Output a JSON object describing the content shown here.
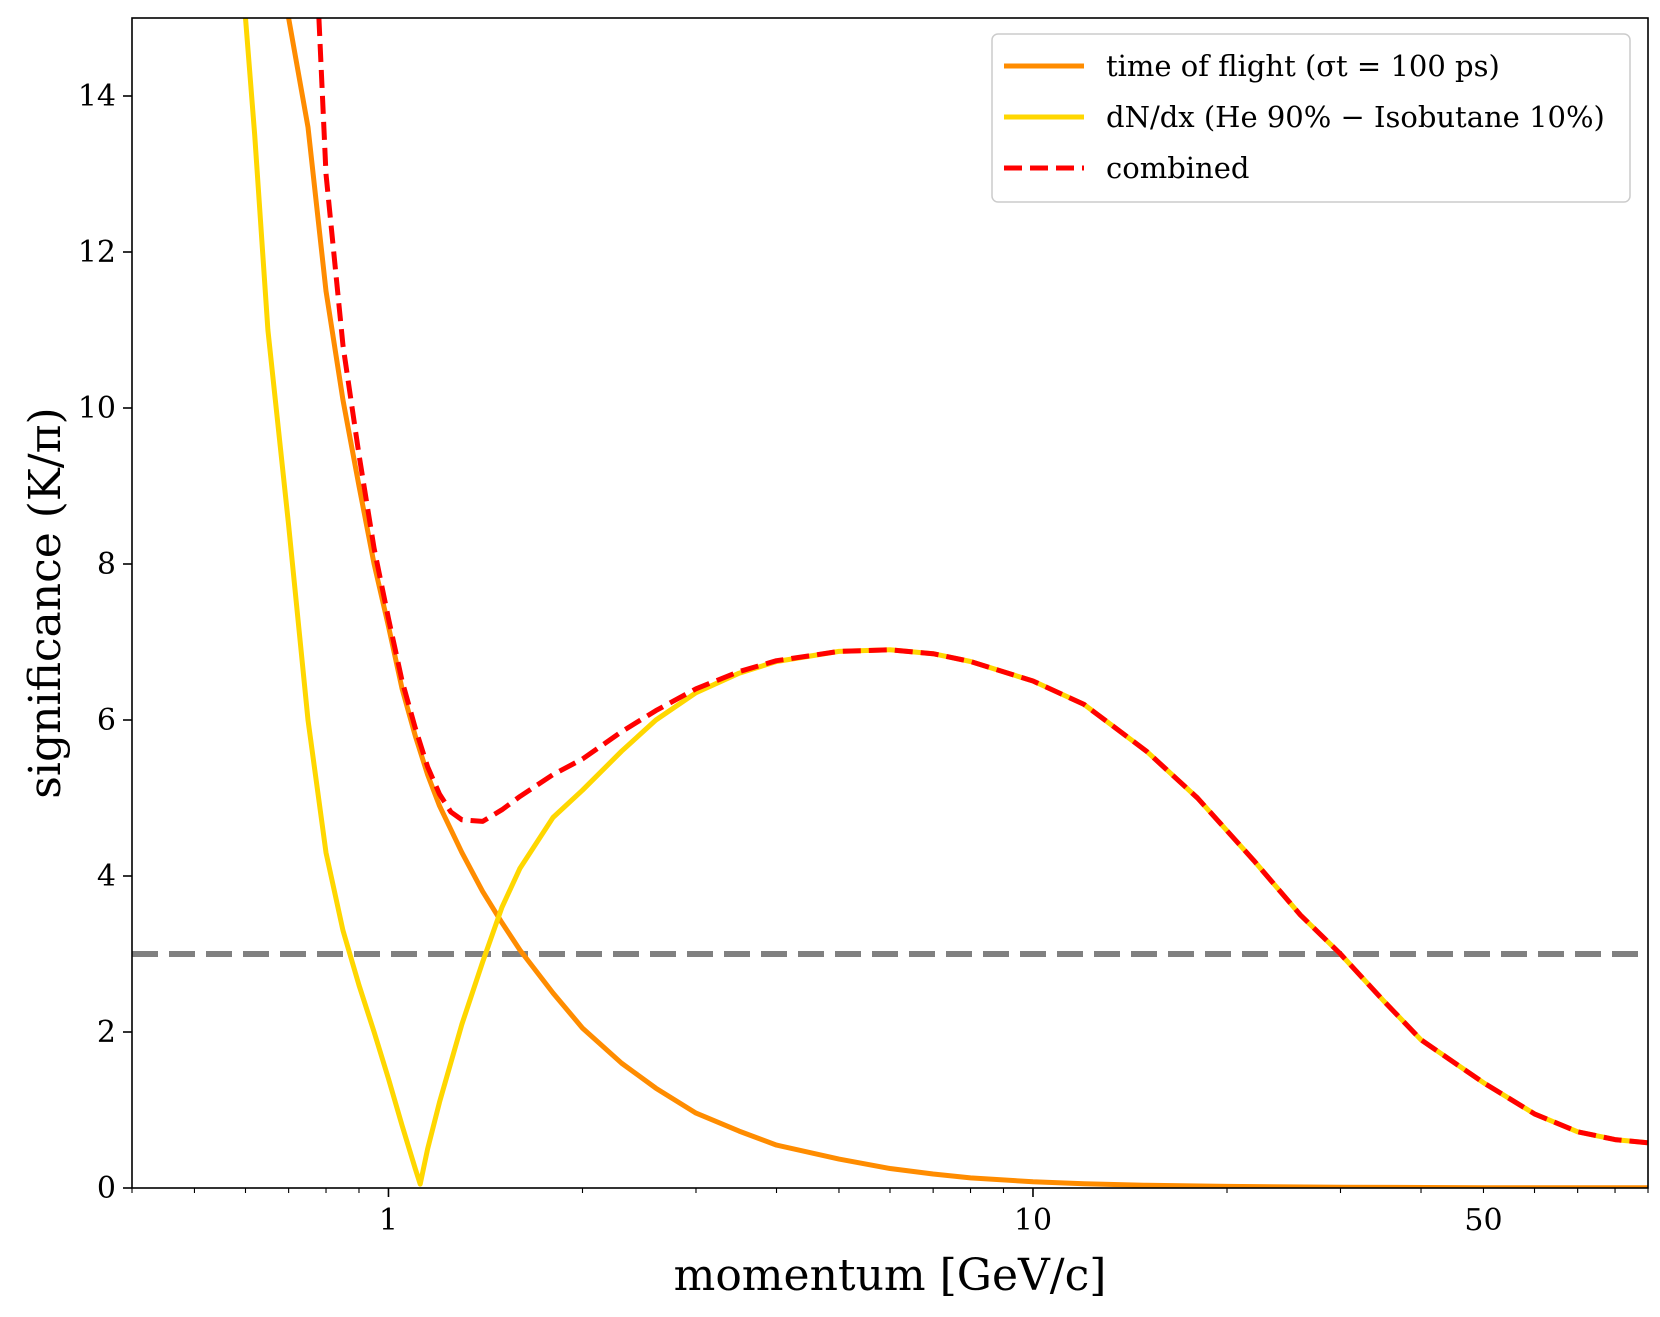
{
  "chart_data": {
    "type": "line",
    "xscale": "log",
    "xlim": [
      0.4,
      90
    ],
    "ylim": [
      0,
      15
    ],
    "xlabel": "momentum [GeV/c]",
    "ylabel": "significance (K/π)",
    "x_tick_labels": [
      {
        "value": 1,
        "label": "1"
      },
      {
        "value": 10,
        "label": "10"
      },
      {
        "value": 50,
        "label": "50"
      }
    ],
    "y_tick_labels": [
      {
        "value": 0,
        "label": "0"
      },
      {
        "value": 2,
        "label": "2"
      },
      {
        "value": 4,
        "label": "4"
      },
      {
        "value": 6,
        "label": "6"
      },
      {
        "value": 8,
        "label": "8"
      },
      {
        "value": 10,
        "label": "10"
      },
      {
        "value": 12,
        "label": "12"
      },
      {
        "value": 14,
        "label": "14"
      }
    ],
    "legend_position": "top-right",
    "reference_line": {
      "y": 3,
      "color": "#808080",
      "style": "dashed"
    },
    "series": [
      {
        "name": "time of flight (σt = 100 ps)",
        "color": "#ff8c00",
        "style": "solid",
        "points": [
          [
            0.7,
            15.0
          ],
          [
            0.75,
            13.6
          ],
          [
            0.8,
            11.5
          ],
          [
            0.85,
            10.1
          ],
          [
            0.9,
            9.0
          ],
          [
            0.95,
            8.0
          ],
          [
            1.0,
            7.2
          ],
          [
            1.05,
            6.4
          ],
          [
            1.1,
            5.8
          ],
          [
            1.15,
            5.3
          ],
          [
            1.2,
            4.9
          ],
          [
            1.3,
            4.3
          ],
          [
            1.4,
            3.8
          ],
          [
            1.5,
            3.4
          ],
          [
            1.6,
            3.05
          ],
          [
            1.8,
            2.5
          ],
          [
            2.0,
            2.05
          ],
          [
            2.3,
            1.6
          ],
          [
            2.6,
            1.28
          ],
          [
            3.0,
            0.96
          ],
          [
            3.5,
            0.73
          ],
          [
            4.0,
            0.55
          ],
          [
            5.0,
            0.37
          ],
          [
            6.0,
            0.25
          ],
          [
            7.0,
            0.18
          ],
          [
            8.0,
            0.13
          ],
          [
            10.0,
            0.08
          ],
          [
            12.0,
            0.055
          ],
          [
            15.0,
            0.035
          ],
          [
            20.0,
            0.02
          ],
          [
            30.0,
            0.01
          ],
          [
            50.0,
            0.004
          ],
          [
            90.0,
            0.002
          ]
        ]
      },
      {
        "name": "dN/dx (He 90% − Isobutane 10%)",
        "color": "#ffd700",
        "style": "solid",
        "points": [
          [
            0.6,
            15.0
          ],
          [
            0.62,
            13.5
          ],
          [
            0.65,
            11.0
          ],
          [
            0.7,
            8.5
          ],
          [
            0.75,
            6.0
          ],
          [
            0.8,
            4.3
          ],
          [
            0.85,
            3.3
          ],
          [
            0.9,
            2.6
          ],
          [
            0.95,
            2.0
          ],
          [
            1.0,
            1.4
          ],
          [
            1.05,
            0.8
          ],
          [
            1.1,
            0.25
          ],
          [
            1.12,
            0.05
          ],
          [
            1.15,
            0.5
          ],
          [
            1.2,
            1.1
          ],
          [
            1.3,
            2.1
          ],
          [
            1.4,
            2.9
          ],
          [
            1.5,
            3.6
          ],
          [
            1.6,
            4.1
          ],
          [
            1.8,
            4.75
          ],
          [
            2.0,
            5.1
          ],
          [
            2.3,
            5.6
          ],
          [
            2.6,
            6.0
          ],
          [
            3.0,
            6.35
          ],
          [
            3.5,
            6.6
          ],
          [
            4.0,
            6.75
          ],
          [
            5.0,
            6.88
          ],
          [
            6.0,
            6.9
          ],
          [
            7.0,
            6.85
          ],
          [
            8.0,
            6.75
          ],
          [
            10.0,
            6.5
          ],
          [
            12.0,
            6.2
          ],
          [
            15.0,
            5.6
          ],
          [
            18.0,
            5.0
          ],
          [
            22.0,
            4.2
          ],
          [
            26.0,
            3.5
          ],
          [
            30.0,
            3.0
          ],
          [
            35.0,
            2.4
          ],
          [
            40.0,
            1.9
          ],
          [
            50.0,
            1.35
          ],
          [
            60.0,
            0.95
          ],
          [
            70.0,
            0.72
          ],
          [
            80.0,
            0.62
          ],
          [
            90.0,
            0.58
          ]
        ]
      },
      {
        "name": "combined",
        "color": "#ff0000",
        "style": "dashed",
        "points": [
          [
            0.78,
            15.0
          ],
          [
            0.8,
            13.0
          ],
          [
            0.85,
            10.8
          ],
          [
            0.9,
            9.4
          ],
          [
            0.95,
            8.2
          ],
          [
            1.0,
            7.3
          ],
          [
            1.05,
            6.5
          ],
          [
            1.1,
            5.9
          ],
          [
            1.15,
            5.4
          ],
          [
            1.2,
            5.05
          ],
          [
            1.25,
            4.82
          ],
          [
            1.3,
            4.72
          ],
          [
            1.4,
            4.7
          ],
          [
            1.5,
            4.85
          ],
          [
            1.6,
            5.02
          ],
          [
            1.8,
            5.3
          ],
          [
            2.0,
            5.5
          ],
          [
            2.3,
            5.85
          ],
          [
            2.6,
            6.12
          ],
          [
            3.0,
            6.4
          ],
          [
            3.5,
            6.62
          ],
          [
            4.0,
            6.76
          ],
          [
            5.0,
            6.88
          ],
          [
            6.0,
            6.9
          ],
          [
            7.0,
            6.85
          ],
          [
            8.0,
            6.75
          ],
          [
            10.0,
            6.5
          ],
          [
            12.0,
            6.2
          ],
          [
            15.0,
            5.6
          ],
          [
            18.0,
            5.0
          ],
          [
            22.0,
            4.2
          ],
          [
            26.0,
            3.5
          ],
          [
            30.0,
            3.0
          ],
          [
            35.0,
            2.4
          ],
          [
            40.0,
            1.9
          ],
          [
            50.0,
            1.35
          ],
          [
            60.0,
            0.95
          ],
          [
            70.0,
            0.72
          ],
          [
            80.0,
            0.62
          ],
          [
            90.0,
            0.58
          ]
        ]
      }
    ]
  }
}
